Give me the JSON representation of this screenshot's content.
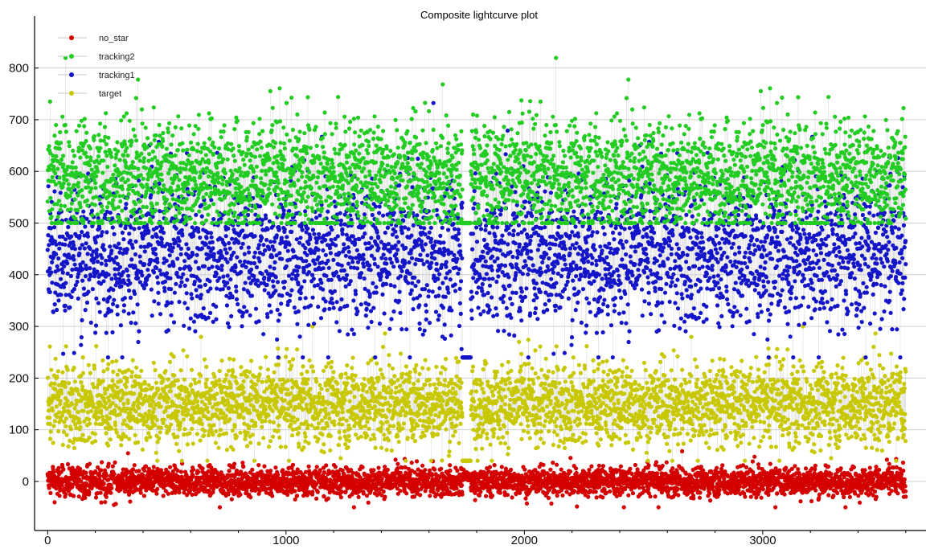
{
  "chart_data": {
    "type": "scatter",
    "title": "Composite lightcurve plot",
    "xlabel": "",
    "ylabel": "",
    "xlim": [
      -55,
      3685
    ],
    "ylim": [
      -95,
      885
    ],
    "x_ticks": [
      0,
      1000,
      2000,
      3000
    ],
    "x_tick_labels": [
      "0",
      "1000",
      "2000",
      "3000"
    ],
    "y_ticks": [
      0,
      100,
      200,
      300,
      400,
      500,
      600,
      700,
      800
    ],
    "y_tick_labels": [
      "0",
      "100",
      "200",
      "300",
      "400",
      "500",
      "600",
      "700",
      "800"
    ],
    "x_range": [
      0,
      3600
    ],
    "point_count_per_series": 3600,
    "connecting_line_color": "#c8c8c8",
    "grid": "horizontal",
    "legend_position": "top-left",
    "gap": {
      "x_start": 1740,
      "x_end": 1775,
      "note_values_near": 10
    },
    "series": [
      {
        "name": "no_star",
        "color": "#d40000",
        "center": 0,
        "spread": 14,
        "min": -50,
        "max": 60
      },
      {
        "name": "tracking2",
        "color": "#22cc22",
        "center": 590,
        "spread": 55,
        "min": 500,
        "max": 848
      },
      {
        "name": "tracking1",
        "color": "#1414c8",
        "center": 440,
        "spread": 70,
        "min": 240,
        "max": 815
      },
      {
        "name": "target",
        "color": "#c8c800",
        "center": 150,
        "spread": 40,
        "min": 40,
        "max": 300
      }
    ]
  }
}
